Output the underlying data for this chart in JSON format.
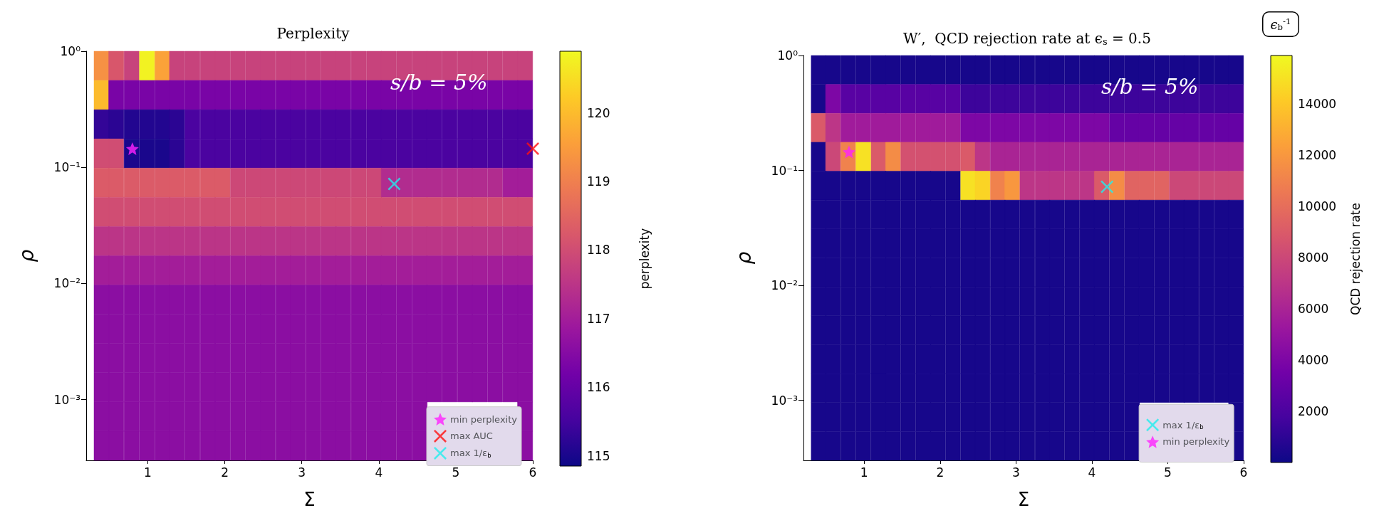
{
  "chart_data": [
    {
      "type": "heatmap",
      "title": "Perplexity",
      "xlabel": "Σ",
      "ylabel": "ρ",
      "clabel": "perplexity",
      "log": "y",
      "legend": "bottom right",
      "annotations": [
        "s/b = 5%"
      ],
      "xlim": [
        0.2,
        6
      ],
      "xticks": [
        1,
        2,
        3,
        4,
        5,
        6
      ],
      "ylim": [
        0.0003,
        1
      ],
      "yticks": [
        {
          "value": 1,
          "label": "10⁰"
        },
        {
          "value": 0.1,
          "label": "10⁻¹"
        },
        {
          "value": 0.01,
          "label": "10⁻²"
        },
        {
          "value": 0.001,
          "label": "10⁻³"
        }
      ],
      "clim": [
        114.85,
        120.9
      ],
      "cticks": [
        115,
        116,
        117,
        118,
        119,
        120
      ],
      "x": [
        0.4,
        0.59,
        0.79,
        0.99,
        1.19,
        1.38,
        1.58,
        1.78,
        1.97,
        2.17,
        2.37,
        2.56,
        2.76,
        2.95,
        3.15,
        3.35,
        3.54,
        3.74,
        3.94,
        4.13,
        4.33,
        4.53,
        4.72,
        4.92,
        5.12,
        5.31,
        5.51,
        5.71,
        5.9
      ],
      "cells": [
        [
          119.3,
          118.2,
          117.8,
          120.8,
          119.6,
          117.8,
          117.8,
          117.8,
          117.8,
          117.8,
          117.8,
          117.8,
          117.8,
          117.8,
          117.8,
          117.8,
          117.8,
          117.8,
          117.8,
          117.8,
          117.8,
          117.8,
          117.8,
          117.8,
          117.8,
          117.8,
          117.8,
          117.8,
          117.8
        ],
        [
          120.0,
          116.3,
          116.3,
          116.3,
          116.3,
          116.3,
          116.3,
          116.3,
          116.3,
          116.3,
          116.3,
          116.3,
          116.3,
          116.3,
          116.3,
          116.3,
          116.3,
          116.3,
          116.3,
          116.3,
          116.3,
          116.3,
          116.3,
          116.3,
          116.3,
          116.3,
          116.3,
          116.3,
          116.3
        ],
        [
          115.3,
          115.2,
          115.1,
          115.1,
          115.1,
          115.2,
          115.6,
          115.6,
          115.6,
          115.6,
          115.6,
          115.6,
          115.6,
          115.6,
          115.6,
          115.6,
          115.6,
          115.6,
          115.6,
          115.6,
          115.6,
          115.6,
          115.6,
          115.6,
          115.6,
          115.6,
          115.6,
          115.6,
          115.6
        ],
        [
          118.0,
          118.0,
          115.0,
          115.0,
          115.0,
          115.2,
          115.6,
          115.6,
          115.6,
          115.6,
          115.6,
          115.6,
          115.6,
          115.6,
          115.6,
          115.6,
          115.6,
          115.6,
          115.6,
          115.6,
          115.6,
          115.6,
          115.6,
          115.6,
          115.6,
          115.6,
          115.6,
          115.6,
          115.6
        ],
        [
          118.3,
          118.3,
          118.3,
          118.3,
          118.3,
          118.3,
          118.3,
          118.3,
          118.3,
          117.9,
          117.9,
          117.9,
          117.9,
          117.9,
          117.9,
          117.9,
          117.9,
          117.9,
          117.9,
          117.3,
          117.3,
          117.3,
          117.3,
          117.3,
          117.3,
          117.3,
          117.3,
          117.0,
          117.0
        ],
        [
          118.0,
          118.0,
          118.0,
          118.0,
          118.0,
          118.0,
          118.0,
          118.0,
          118.0,
          118.0,
          118.0,
          118.0,
          118.0,
          118.0,
          118.0,
          118.0,
          118.0,
          118.0,
          118.0,
          118.0,
          118.0,
          118.0,
          118.0,
          118.0,
          118.0,
          118.0,
          118.0,
          118.0,
          118.0
        ],
        [
          117.5,
          117.5,
          117.5,
          117.5,
          117.5,
          117.5,
          117.5,
          117.5,
          117.5,
          117.5,
          117.5,
          117.5,
          117.5,
          117.5,
          117.5,
          117.5,
          117.5,
          117.5,
          117.5,
          117.5,
          117.5,
          117.5,
          117.5,
          117.5,
          117.5,
          117.5,
          117.5,
          117.5,
          117.5
        ],
        [
          117.0,
          117.0,
          117.0,
          117.0,
          117.0,
          117.0,
          117.0,
          117.0,
          117.0,
          117.0,
          117.0,
          117.0,
          117.0,
          117.0,
          117.0,
          117.0,
          117.0,
          117.0,
          117.0,
          117.0,
          117.0,
          117.0,
          117.0,
          117.0,
          117.0,
          117.0,
          117.0,
          117.0,
          117.0
        ],
        [
          116.6,
          116.6,
          116.6,
          116.6,
          116.6,
          116.6,
          116.6,
          116.6,
          116.6,
          116.6,
          116.6,
          116.6,
          116.6,
          116.6,
          116.6,
          116.6,
          116.6,
          116.6,
          116.6,
          116.6,
          116.6,
          116.6,
          116.6,
          116.6,
          116.6,
          116.6,
          116.6,
          116.6,
          116.6
        ],
        [
          116.6,
          116.6,
          116.6,
          116.6,
          116.6,
          116.6,
          116.6,
          116.6,
          116.6,
          116.6,
          116.6,
          116.6,
          116.6,
          116.6,
          116.6,
          116.6,
          116.6,
          116.6,
          116.6,
          116.6,
          116.6,
          116.6,
          116.6,
          116.6,
          116.6,
          116.6,
          116.6,
          116.6,
          116.6
        ],
        [
          116.6,
          116.6,
          116.6,
          116.6,
          116.6,
          116.6,
          116.6,
          116.6,
          116.6,
          116.6,
          116.6,
          116.6,
          116.6,
          116.6,
          116.6,
          116.6,
          116.6,
          116.6,
          116.6,
          116.6,
          116.6,
          116.6,
          116.6,
          116.6,
          116.6,
          116.6,
          116.6,
          116.6,
          116.6
        ],
        [
          116.6,
          116.6,
          116.6,
          116.6,
          116.6,
          116.6,
          116.6,
          116.6,
          116.6,
          116.6,
          116.6,
          116.6,
          116.6,
          116.6,
          116.6,
          116.6,
          116.6,
          116.6,
          116.6,
          116.6,
          116.6,
          116.6,
          116.6,
          116.6,
          116.6,
          116.6,
          116.6,
          116.6,
          116.6
        ],
        [
          116.6,
          116.6,
          116.6,
          116.6,
          116.6,
          116.6,
          116.6,
          116.6,
          116.6,
          116.6,
          116.6,
          116.6,
          116.6,
          116.6,
          116.6,
          116.6,
          116.6,
          116.6,
          116.6,
          116.6,
          116.6,
          116.6,
          null,
          null,
          null,
          null,
          null,
          null,
          116.6
        ],
        [
          116.6,
          116.6,
          116.6,
          116.6,
          116.6,
          116.6,
          116.6,
          116.6,
          116.6,
          116.6,
          116.6,
          116.6,
          116.6,
          116.6,
          116.6,
          116.6,
          116.6,
          116.6,
          116.6,
          116.6,
          116.6,
          116.6,
          null,
          null,
          null,
          null,
          null,
          null,
          116.6
        ]
      ],
      "series": [
        {
          "name": "min perplexity",
          "type": "scatter",
          "marker": "star",
          "color": "#ff22ff",
          "x": [
            0.8
          ],
          "values": [
            0.145
          ]
        },
        {
          "name": "max AUC",
          "type": "scatter",
          "marker": "cross",
          "color": "#ff1010",
          "x": [
            6.0
          ],
          "values": [
            0.145
          ]
        },
        {
          "name": "max 1/ε$_{b}$",
          "type": "scatter",
          "marker": "cross",
          "color": "#22eeee",
          "x": [
            4.2
          ],
          "values": [
            0.072
          ]
        }
      ]
    },
    {
      "type": "heatmap",
      "title": "W′,  QCD rejection rate at ϵ$_{s}$ = 0.5",
      "xlabel": "Σ",
      "ylabel": "ρ",
      "clabel": "QCD rejection rate",
      "log": "y",
      "legend": "bottom right",
      "annotations": [
        "s/b = 5%",
        "ϵ$_{b}$$^{-1}$"
      ],
      "xlim": [
        0.2,
        6
      ],
      "xticks": [
        1,
        2,
        3,
        4,
        5,
        6
      ],
      "ylim": [
        0.0003,
        1
      ],
      "yticks": [
        {
          "value": 1,
          "label": "10⁰"
        },
        {
          "value": 0.1,
          "label": "10⁻¹"
        },
        {
          "value": 0.01,
          "label": "10⁻²"
        },
        {
          "value": 0.001,
          "label": "10⁻³"
        }
      ],
      "clim": [
        0,
        15900
      ],
      "cticks": [
        2000,
        4000,
        6000,
        8000,
        10000,
        12000,
        14000
      ],
      "x": [
        0.4,
        0.59,
        0.79,
        0.99,
        1.19,
        1.38,
        1.58,
        1.78,
        1.97,
        2.17,
        2.37,
        2.56,
        2.76,
        2.95,
        3.15,
        3.35,
        3.54,
        3.74,
        3.94,
        4.13,
        4.33,
        4.53,
        4.72,
        4.92,
        5.12,
        5.31,
        5.51,
        5.71,
        5.9
      ],
      "cells": [
        [
          300,
          300,
          300,
          300,
          300,
          300,
          300,
          300,
          300,
          300,
          300,
          300,
          300,
          300,
          300,
          300,
          300,
          300,
          300,
          300,
          300,
          300,
          300,
          300,
          300,
          300,
          300,
          300,
          300
        ],
        [
          300,
          4000,
          2500,
          2500,
          2500,
          2500,
          2500,
          2500,
          2500,
          2500,
          1500,
          1500,
          1500,
          1500,
          1500,
          1500,
          1500,
          1500,
          1500,
          1500,
          1500,
          1500,
          1500,
          1500,
          1500,
          1500,
          1500,
          1500,
          1500
        ],
        [
          9000,
          7000,
          5500,
          5500,
          5500,
          5500,
          5500,
          5500,
          5500,
          5500,
          4000,
          4000,
          4000,
          4000,
          4000,
          4000,
          4000,
          4000,
          4000,
          4000,
          3000,
          3000,
          3000,
          3000,
          3000,
          3000,
          3000,
          3000,
          3000
        ],
        [
          300,
          8000,
          11000,
          15000,
          9000,
          11500,
          8500,
          8500,
          8500,
          8500,
          9000,
          7000,
          6000,
          6000,
          6000,
          6000,
          6000,
          6000,
          6000,
          6000,
          6000,
          6000,
          6000,
          6000,
          6000,
          6000,
          6000,
          6000,
          6000
        ],
        [
          300,
          300,
          300,
          300,
          300,
          300,
          300,
          300,
          300,
          300,
          15000,
          14500,
          11000,
          12000,
          7000,
          7000,
          7000,
          7000,
          7000,
          9000,
          11500,
          9500,
          9500,
          9500,
          8000,
          8000,
          8000,
          8000,
          8000
        ],
        [
          300,
          300,
          300,
          300,
          300,
          300,
          300,
          300,
          300,
          300,
          300,
          300,
          300,
          300,
          300,
          300,
          300,
          300,
          300,
          300,
          300,
          300,
          300,
          300,
          300,
          300,
          300,
          300,
          300
        ],
        [
          300,
          300,
          300,
          300,
          300,
          300,
          300,
          300,
          300,
          300,
          300,
          300,
          300,
          300,
          300,
          300,
          300,
          300,
          300,
          300,
          300,
          300,
          300,
          300,
          300,
          300,
          300,
          300,
          300
        ],
        [
          300,
          300,
          300,
          300,
          300,
          300,
          300,
          300,
          300,
          300,
          300,
          300,
          300,
          300,
          300,
          300,
          300,
          300,
          300,
          300,
          300,
          300,
          300,
          300,
          300,
          300,
          300,
          300,
          300
        ],
        [
          300,
          300,
          300,
          300,
          300,
          300,
          300,
          300,
          300,
          300,
          300,
          300,
          300,
          300,
          300,
          300,
          300,
          300,
          300,
          300,
          300,
          300,
          300,
          300,
          300,
          300,
          300,
          300,
          300
        ],
        [
          300,
          300,
          300,
          300,
          300,
          300,
          300,
          300,
          300,
          300,
          300,
          300,
          300,
          300,
          300,
          300,
          300,
          300,
          300,
          300,
          300,
          300,
          300,
          300,
          300,
          300,
          300,
          300,
          300
        ],
        [
          300,
          300,
          300,
          300,
          300,
          300,
          300,
          300,
          300,
          300,
          300,
          300,
          300,
          300,
          300,
          300,
          300,
          300,
          300,
          300,
          300,
          300,
          300,
          300,
          300,
          300,
          300,
          300,
          300
        ],
        [
          300,
          300,
          300,
          300,
          300,
          300,
          300,
          300,
          300,
          300,
          300,
          300,
          300,
          300,
          300,
          300,
          300,
          300,
          300,
          300,
          300,
          300,
          300,
          300,
          300,
          300,
          300,
          300,
          300
        ],
        [
          300,
          300,
          300,
          300,
          300,
          300,
          300,
          300,
          300,
          300,
          300,
          300,
          300,
          300,
          300,
          300,
          300,
          300,
          300,
          300,
          300,
          300,
          null,
          null,
          null,
          null,
          null,
          null,
          300
        ],
        [
          300,
          300,
          300,
          300,
          300,
          300,
          300,
          300,
          300,
          300,
          300,
          300,
          300,
          300,
          300,
          300,
          300,
          300,
          300,
          300,
          300,
          300,
          null,
          null,
          null,
          null,
          null,
          null,
          300
        ]
      ],
      "series": [
        {
          "name": "max 1/ε$_{b}$",
          "type": "scatter",
          "marker": "cross",
          "color": "#22eeee",
          "x": [
            4.2
          ],
          "values": [
            0.072
          ]
        },
        {
          "name": "min perplexity",
          "type": "scatter",
          "marker": "star",
          "color": "#ff22ff",
          "x": [
            0.8
          ],
          "values": [
            0.145
          ]
        }
      ]
    }
  ]
}
